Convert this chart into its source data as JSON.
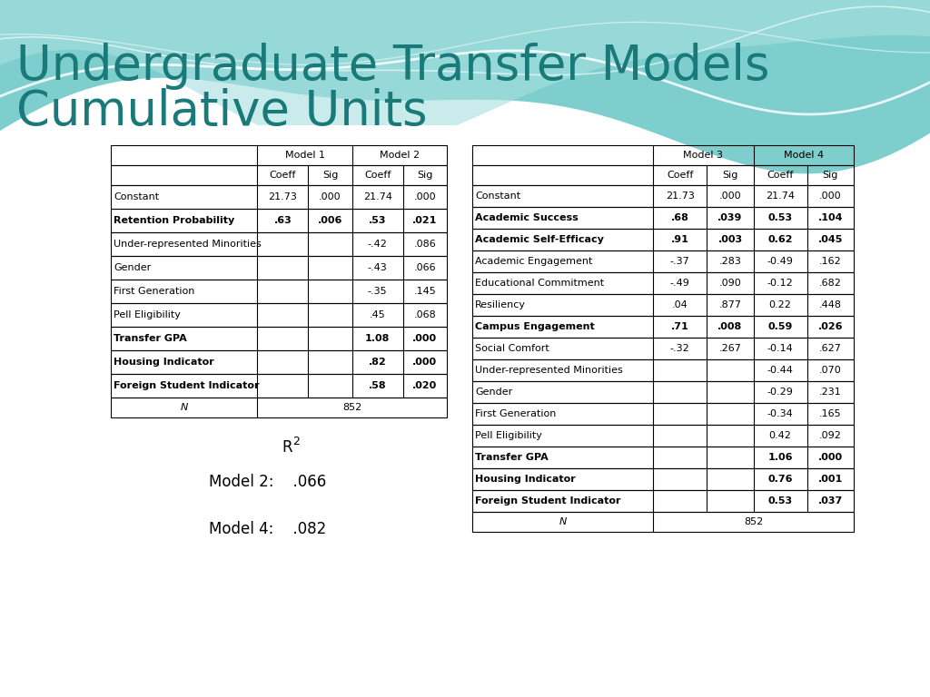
{
  "title_line1": "Undergraduate Transfer Models",
  "title_line2": "Cumulative Units",
  "title_color": "#1a7a7a",
  "table1_rows": [
    [
      "Constant",
      "21.73",
      ".000",
      "21.74",
      ".000"
    ],
    [
      "Retention Probability",
      ".63",
      ".006",
      ".53",
      ".021"
    ],
    [
      "Under-represented Minorities",
      "",
      "",
      "-.42",
      ".086"
    ],
    [
      "Gender",
      "",
      "",
      "-.43",
      ".066"
    ],
    [
      "First Generation",
      "",
      "",
      "-.35",
      ".145"
    ],
    [
      "Pell Eligibility",
      "",
      "",
      ".45",
      ".068"
    ],
    [
      "Transfer GPA",
      "",
      "",
      "1.08",
      ".000"
    ],
    [
      "Housing Indicator",
      "",
      "",
      ".82",
      ".000"
    ],
    [
      "Foreign Student Indicator",
      "",
      "",
      ".58",
      ".020"
    ]
  ],
  "table1_bold_rows": [
    1,
    6,
    7,
    8
  ],
  "table1_n": "852",
  "table2_rows": [
    [
      "Constant",
      "21.73",
      ".000",
      "21.74",
      ".000"
    ],
    [
      "Academic Success",
      ".68",
      ".039",
      "0.53",
      ".104"
    ],
    [
      "Academic Self-Efficacy",
      ".91",
      ".003",
      "0.62",
      ".045"
    ],
    [
      "Academic Engagement",
      "-.37",
      ".283",
      "-0.49",
      ".162"
    ],
    [
      "Educational Commitment",
      "-.49",
      ".090",
      "-0.12",
      ".682"
    ],
    [
      "Resiliency",
      ".04",
      ".877",
      "0.22",
      ".448"
    ],
    [
      "Campus Engagement",
      ".71",
      ".008",
      "0.59",
      ".026"
    ],
    [
      "Social Comfort",
      "-.32",
      ".267",
      "-0.14",
      ".627"
    ],
    [
      "Under-represented Minorities",
      "",
      "",
      "-0.44",
      ".070"
    ],
    [
      "Gender",
      "",
      "",
      "-0.29",
      ".231"
    ],
    [
      "First Generation",
      "",
      "",
      "-0.34",
      ".165"
    ],
    [
      "Pell Eligibility",
      "",
      "",
      "0.42",
      ".092"
    ],
    [
      "Transfer GPA",
      "",
      "",
      "1.06",
      ".000"
    ],
    [
      "Housing Indicator",
      "",
      "",
      "0.76",
      ".001"
    ],
    [
      "Foreign Student Indicator",
      "",
      "",
      "0.53",
      ".037"
    ]
  ],
  "table2_bold_rows": [
    1,
    2,
    6,
    12,
    13,
    14
  ],
  "table2_n": "852",
  "model2_r2": ".066",
  "model4_r2": ".082",
  "wave_color1": "#7ecece",
  "wave_color2": "#a8dfdf",
  "wave_color3": "#c5eaea"
}
